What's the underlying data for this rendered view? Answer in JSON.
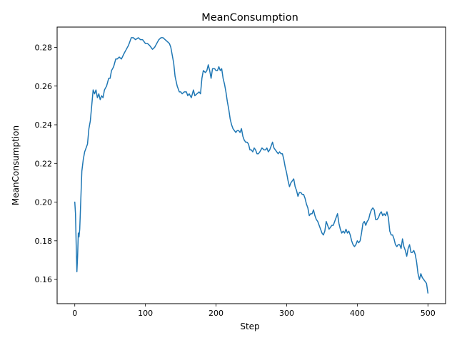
{
  "chart_data": {
    "type": "line",
    "title": "MeanConsumption",
    "xlabel": "Step",
    "ylabel": "MeanConsumption",
    "xlim": [
      -25,
      525
    ],
    "ylim": [
      0.1475,
      0.2905
    ],
    "x_ticks": [
      0,
      100,
      200,
      300,
      400,
      500
    ],
    "y_ticks": [
      0.16,
      0.18,
      0.2,
      0.22,
      0.24,
      0.26,
      0.28
    ],
    "x_tick_labels": [
      "0",
      "100",
      "200",
      "300",
      "400",
      "500"
    ],
    "y_tick_labels": [
      "0.16",
      "0.18",
      "0.20",
      "0.22",
      "0.24",
      "0.26",
      "0.28"
    ],
    "grid": false,
    "series": [
      {
        "color": "#1f77b4",
        "points": [
          [
            0,
            0.2
          ],
          [
            1,
            0.194
          ],
          [
            2,
            0.178
          ],
          [
            3,
            0.164
          ],
          [
            4,
            0.172
          ],
          [
            5,
            0.184
          ],
          [
            6,
            0.182
          ],
          [
            7,
            0.186
          ],
          [
            8,
            0.196
          ],
          [
            9,
            0.206
          ],
          [
            10,
            0.216
          ],
          [
            12,
            0.222
          ],
          [
            14,
            0.226
          ],
          [
            16,
            0.228
          ],
          [
            18,
            0.23
          ],
          [
            20,
            0.238
          ],
          [
            22,
            0.242
          ],
          [
            24,
            0.25
          ],
          [
            26,
            0.258
          ],
          [
            28,
            0.256
          ],
          [
            30,
            0.258
          ],
          [
            32,
            0.254
          ],
          [
            34,
            0.256
          ],
          [
            36,
            0.253
          ],
          [
            38,
            0.255
          ],
          [
            40,
            0.254
          ],
          [
            42,
            0.258
          ],
          [
            45,
            0.26
          ],
          [
            48,
            0.264
          ],
          [
            50,
            0.264
          ],
          [
            52,
            0.268
          ],
          [
            55,
            0.27
          ],
          [
            58,
            0.274
          ],
          [
            60,
            0.274
          ],
          [
            63,
            0.275
          ],
          [
            66,
            0.274
          ],
          [
            70,
            0.277
          ],
          [
            73,
            0.279
          ],
          [
            76,
            0.281
          ],
          [
            78,
            0.283
          ],
          [
            80,
            0.285
          ],
          [
            83,
            0.285
          ],
          [
            86,
            0.284
          ],
          [
            90,
            0.285
          ],
          [
            93,
            0.284
          ],
          [
            96,
            0.284
          ],
          [
            98,
            0.283
          ],
          [
            100,
            0.282
          ],
          [
            103,
            0.282
          ],
          [
            106,
            0.281
          ],
          [
            110,
            0.279
          ],
          [
            113,
            0.28
          ],
          [
            116,
            0.282
          ],
          [
            119,
            0.284
          ],
          [
            122,
            0.285
          ],
          [
            125,
            0.285
          ],
          [
            128,
            0.284
          ],
          [
            131,
            0.283
          ],
          [
            134,
            0.282
          ],
          [
            136,
            0.28
          ],
          [
            138,
            0.276
          ],
          [
            140,
            0.272
          ],
          [
            142,
            0.265
          ],
          [
            145,
            0.26
          ],
          [
            148,
            0.257
          ],
          [
            150,
            0.257
          ],
          [
            152,
            0.256
          ],
          [
            155,
            0.257
          ],
          [
            158,
            0.257
          ],
          [
            160,
            0.255
          ],
          [
            162,
            0.256
          ],
          [
            165,
            0.254
          ],
          [
            168,
            0.258
          ],
          [
            170,
            0.255
          ],
          [
            173,
            0.256
          ],
          [
            176,
            0.257
          ],
          [
            178,
            0.256
          ],
          [
            180,
            0.264
          ],
          [
            182,
            0.268
          ],
          [
            185,
            0.267
          ],
          [
            187,
            0.268
          ],
          [
            189,
            0.271
          ],
          [
            191,
            0.268
          ],
          [
            193,
            0.264
          ],
          [
            195,
            0.269
          ],
          [
            198,
            0.269
          ],
          [
            200,
            0.268
          ],
          [
            202,
            0.268
          ],
          [
            204,
            0.27
          ],
          [
            206,
            0.268
          ],
          [
            208,
            0.269
          ],
          [
            210,
            0.264
          ],
          [
            212,
            0.261
          ],
          [
            214,
            0.257
          ],
          [
            216,
            0.252
          ],
          [
            218,
            0.248
          ],
          [
            220,
            0.243
          ],
          [
            222,
            0.24
          ],
          [
            224,
            0.238
          ],
          [
            226,
            0.237
          ],
          [
            228,
            0.236
          ],
          [
            230,
            0.237
          ],
          [
            232,
            0.237
          ],
          [
            234,
            0.236
          ],
          [
            236,
            0.238
          ],
          [
            238,
            0.234
          ],
          [
            240,
            0.232
          ],
          [
            242,
            0.231
          ],
          [
            244,
            0.231
          ],
          [
            246,
            0.23
          ],
          [
            248,
            0.227
          ],
          [
            250,
            0.227
          ],
          [
            252,
            0.226
          ],
          [
            254,
            0.228
          ],
          [
            256,
            0.227
          ],
          [
            258,
            0.225
          ],
          [
            260,
            0.225
          ],
          [
            262,
            0.226
          ],
          [
            265,
            0.228
          ],
          [
            268,
            0.227
          ],
          [
            270,
            0.227
          ],
          [
            272,
            0.228
          ],
          [
            274,
            0.226
          ],
          [
            276,
            0.227
          ],
          [
            278,
            0.229
          ],
          [
            280,
            0.231
          ],
          [
            282,
            0.228
          ],
          [
            284,
            0.227
          ],
          [
            286,
            0.226
          ],
          [
            288,
            0.225
          ],
          [
            290,
            0.226
          ],
          [
            292,
            0.225
          ],
          [
            294,
            0.225
          ],
          [
            296,
            0.222
          ],
          [
            298,
            0.218
          ],
          [
            300,
            0.215
          ],
          [
            302,
            0.211
          ],
          [
            304,
            0.208
          ],
          [
            306,
            0.21
          ],
          [
            308,
            0.211
          ],
          [
            310,
            0.212
          ],
          [
            312,
            0.208
          ],
          [
            314,
            0.206
          ],
          [
            316,
            0.203
          ],
          [
            318,
            0.205
          ],
          [
            320,
            0.205
          ],
          [
            322,
            0.204
          ],
          [
            324,
            0.204
          ],
          [
            326,
            0.202
          ],
          [
            328,
            0.199
          ],
          [
            330,
            0.197
          ],
          [
            332,
            0.193
          ],
          [
            334,
            0.194
          ],
          [
            336,
            0.194
          ],
          [
            338,
            0.196
          ],
          [
            340,
            0.193
          ],
          [
            342,
            0.191
          ],
          [
            344,
            0.19
          ],
          [
            346,
            0.188
          ],
          [
            348,
            0.186
          ],
          [
            350,
            0.184
          ],
          [
            352,
            0.183
          ],
          [
            354,
            0.185
          ],
          [
            356,
            0.19
          ],
          [
            358,
            0.188
          ],
          [
            360,
            0.186
          ],
          [
            362,
            0.187
          ],
          [
            364,
            0.188
          ],
          [
            366,
            0.188
          ],
          [
            368,
            0.19
          ],
          [
            370,
            0.192
          ],
          [
            372,
            0.194
          ],
          [
            374,
            0.189
          ],
          [
            376,
            0.186
          ],
          [
            378,
            0.184
          ],
          [
            380,
            0.185
          ],
          [
            382,
            0.184
          ],
          [
            384,
            0.186
          ],
          [
            386,
            0.184
          ],
          [
            388,
            0.185
          ],
          [
            390,
            0.183
          ],
          [
            392,
            0.18
          ],
          [
            394,
            0.178
          ],
          [
            396,
            0.177
          ],
          [
            398,
            0.178
          ],
          [
            400,
            0.18
          ],
          [
            402,
            0.179
          ],
          [
            404,
            0.18
          ],
          [
            406,
            0.184
          ],
          [
            408,
            0.189
          ],
          [
            410,
            0.19
          ],
          [
            412,
            0.188
          ],
          [
            414,
            0.19
          ],
          [
            416,
            0.191
          ],
          [
            418,
            0.194
          ],
          [
            420,
            0.196
          ],
          [
            422,
            0.197
          ],
          [
            424,
            0.196
          ],
          [
            426,
            0.191
          ],
          [
            428,
            0.191
          ],
          [
            430,
            0.192
          ],
          [
            432,
            0.194
          ],
          [
            434,
            0.195
          ],
          [
            436,
            0.193
          ],
          [
            438,
            0.194
          ],
          [
            440,
            0.193
          ],
          [
            442,
            0.195
          ],
          [
            444,
            0.192
          ],
          [
            446,
            0.185
          ],
          [
            448,
            0.183
          ],
          [
            450,
            0.183
          ],
          [
            452,
            0.181
          ],
          [
            454,
            0.178
          ],
          [
            456,
            0.177
          ],
          [
            458,
            0.178
          ],
          [
            460,
            0.178
          ],
          [
            462,
            0.176
          ],
          [
            464,
            0.181
          ],
          [
            466,
            0.177
          ],
          [
            468,
            0.175
          ],
          [
            470,
            0.172
          ],
          [
            472,
            0.176
          ],
          [
            474,
            0.178
          ],
          [
            476,
            0.174
          ],
          [
            478,
            0.174
          ],
          [
            480,
            0.175
          ],
          [
            482,
            0.173
          ],
          [
            484,
            0.169
          ],
          [
            486,
            0.163
          ],
          [
            488,
            0.16
          ],
          [
            490,
            0.163
          ],
          [
            492,
            0.161
          ],
          [
            494,
            0.16
          ],
          [
            496,
            0.159
          ],
          [
            498,
            0.158
          ],
          [
            500,
            0.153
          ]
        ]
      }
    ]
  }
}
